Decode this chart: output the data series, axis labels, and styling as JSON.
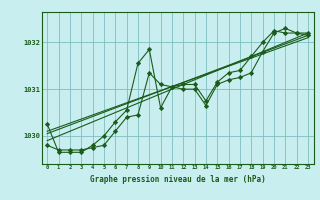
{
  "bg_color": "#c8eef0",
  "grid_color": "#7fbfbf",
  "line_color": "#1a5c1a",
  "xlabel": "Graphe pression niveau de la mer (hPa)",
  "xlim": [
    -0.5,
    23.5
  ],
  "ylim": [
    1029.4,
    1032.65
  ],
  "yticks": [
    1030,
    1031,
    1032
  ],
  "xticks": [
    0,
    1,
    2,
    3,
    4,
    5,
    6,
    7,
    8,
    9,
    10,
    11,
    12,
    13,
    14,
    15,
    16,
    17,
    18,
    19,
    20,
    21,
    22,
    23
  ],
  "series": [
    [
      1029.8,
      1029.7,
      1029.7,
      1029.7,
      1029.75,
      1029.8,
      1030.1,
      1030.4,
      1030.45,
      1031.35,
      1031.1,
      1031.05,
      1031.0,
      1031.0,
      1030.65,
      1031.1,
      1031.2,
      1031.25,
      1031.35,
      1031.8,
      1032.2,
      1032.3,
      1032.2,
      1032.2
    ],
    [
      1029.9,
      null,
      null,
      null,
      null,
      null,
      null,
      null,
      null,
      null,
      null,
      null,
      null,
      null,
      null,
      null,
      null,
      null,
      null,
      null,
      null,
      null,
      null,
      1032.2
    ],
    [
      1030.05,
      null,
      null,
      null,
      null,
      null,
      null,
      null,
      null,
      null,
      null,
      null,
      null,
      null,
      null,
      null,
      null,
      null,
      null,
      null,
      null,
      null,
      null,
      1032.15
    ],
    [
      1030.1,
      null,
      null,
      null,
      null,
      null,
      null,
      null,
      null,
      null,
      null,
      null,
      null,
      null,
      null,
      null,
      null,
      null,
      null,
      null,
      null,
      null,
      null,
      1032.1
    ],
    [
      1030.25,
      1029.65,
      1029.65,
      1029.65,
      1029.8,
      1030.0,
      1030.3,
      1030.55,
      1031.55,
      1031.85,
      1030.6,
      1031.05,
      1031.1,
      1031.1,
      1030.75,
      1031.15,
      1031.35,
      1031.4,
      1031.7,
      1032.0,
      1032.25,
      1032.2,
      1032.2,
      1032.15
    ]
  ],
  "has_markers": [
    true,
    false,
    false,
    false,
    true
  ]
}
